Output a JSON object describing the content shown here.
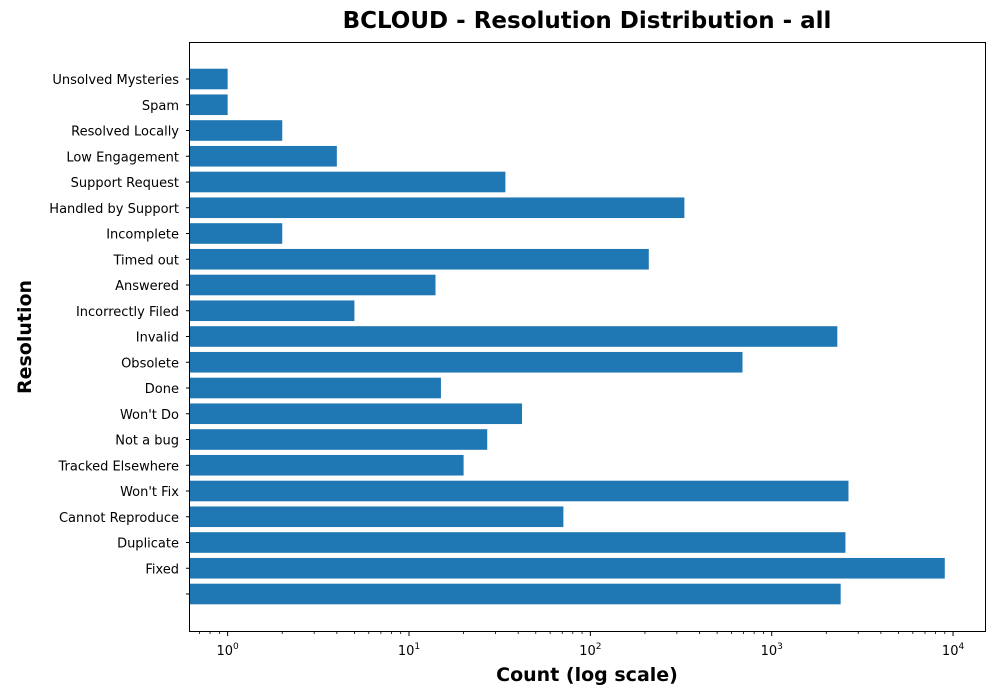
{
  "chart_data": {
    "type": "bar",
    "orientation": "horizontal",
    "title": "BCLOUD - Resolution Distribution - all",
    "xlabel": "Count (log scale)",
    "ylabel": "Resolution",
    "x_scale": "log",
    "xlim": [
      0.62,
      15000
    ],
    "x_ticks": [
      1,
      10,
      100,
      1000,
      10000
    ],
    "x_tick_labels": [
      {
        "base": "10",
        "exp": "0"
      },
      {
        "base": "10",
        "exp": "1"
      },
      {
        "base": "10",
        "exp": "2"
      },
      {
        "base": "10",
        "exp": "3"
      },
      {
        "base": "10",
        "exp": "4"
      }
    ],
    "bar_color": "#1f77b4",
    "grid": false,
    "categories": [
      "Unsolved Mysteries",
      "Spam",
      "Resolved Locally",
      "Low Engagement",
      "Support Request",
      "Handled by Support",
      "Incomplete",
      "Timed out",
      "Answered",
      "Incorrectly Filed",
      "Invalid",
      "Obsolete",
      "Done",
      "Won't Do",
      "Not a bug",
      "Tracked Elsewhere",
      "Won't Fix",
      "Cannot Reproduce",
      "Duplicate",
      "Fixed",
      ""
    ],
    "values": [
      1,
      1,
      2,
      4,
      34,
      330,
      2,
      210,
      14,
      5,
      2300,
      690,
      15,
      42,
      27,
      20,
      2650,
      71,
      2550,
      9000,
      2400
    ]
  }
}
